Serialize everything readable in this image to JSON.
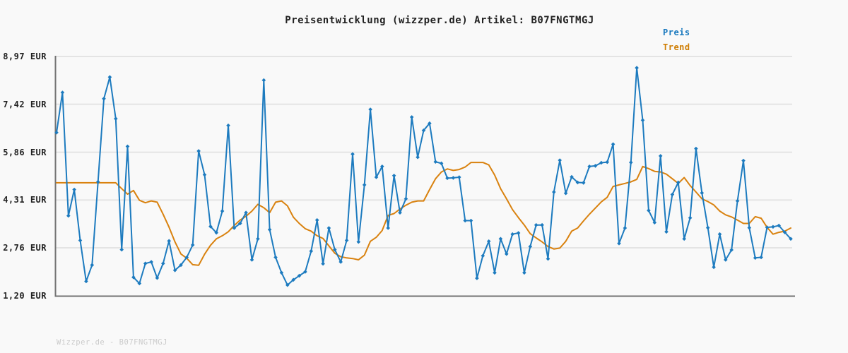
{
  "title": "Preisentwicklung (wizzper.de) Artikel: B07FNGTMGJ",
  "legend": {
    "price_label": "Preis",
    "trend_label": "Trend"
  },
  "watermark": "Wizzper.de - B07FNGTMGJ",
  "currency": "EUR",
  "colors": {
    "background": "#f9f9f9",
    "price_line": "#1d7bbf",
    "trend_line": "#d9820f",
    "legend_price_text": "#1778be",
    "legend_trend_text": "#cf7e04",
    "gridline": "#e4e4e4",
    "axis": "#737373",
    "tick_label": "#222222",
    "watermark_text": "#cbcbcb"
  },
  "chart_data": {
    "type": "line",
    "title": "Preisentwicklung (wizzper.de) Artikel: B07FNGTMGJ",
    "xlabel": "",
    "ylabel": "EUR",
    "ylim": [
      1.2,
      8.97
    ],
    "grid": "horizontal",
    "legend_position": "top-right",
    "y_ticks": [
      {
        "value": 8.97,
        "label": "8,97 EUR"
      },
      {
        "value": 7.42,
        "label": "7,42 EUR"
      },
      {
        "value": 5.86,
        "label": "5,86 EUR"
      },
      {
        "value": 4.31,
        "label": "4,31 EUR"
      },
      {
        "value": 2.76,
        "label": "2,76 EUR"
      },
      {
        "value": 1.2,
        "label": "1,20 EUR"
      }
    ],
    "series": [
      {
        "name": "Preis",
        "color": "#1d7bbf",
        "marker": "diamond",
        "values": [
          6.5,
          7.8,
          3.8,
          4.65,
          3.0,
          1.67,
          2.2,
          4.9,
          7.6,
          8.3,
          6.95,
          2.7,
          6.05,
          1.8,
          1.6,
          2.25,
          2.3,
          1.78,
          2.25,
          2.98,
          2.03,
          2.2,
          2.45,
          2.85,
          5.9,
          5.13,
          3.45,
          3.25,
          3.95,
          6.73,
          3.4,
          3.55,
          3.9,
          2.37,
          3.05,
          8.2,
          3.35,
          2.45,
          1.95,
          1.55,
          1.72,
          1.85,
          1.98,
          2.65,
          3.66,
          2.24,
          3.4,
          2.7,
          2.3,
          3.0,
          5.8,
          2.95,
          4.8,
          7.25,
          5.05,
          5.4,
          3.4,
          5.1,
          3.9,
          4.35,
          7.0,
          5.7,
          6.57,
          6.8,
          5.55,
          5.5,
          5.02,
          5.03,
          5.05,
          3.64,
          3.64,
          1.77,
          2.5,
          2.97,
          1.95,
          3.05,
          2.56,
          3.2,
          3.24,
          1.95,
          2.8,
          3.5,
          3.5,
          2.4,
          4.57,
          5.6,
          4.53,
          5.06,
          4.88,
          4.87,
          5.4,
          5.42,
          5.52,
          5.54,
          6.12,
          2.9,
          3.4,
          5.53,
          8.6,
          6.9,
          3.97,
          3.58,
          5.74,
          3.28,
          4.49,
          4.88,
          3.05,
          3.73,
          5.98,
          4.54,
          3.41,
          2.13,
          3.2,
          2.37,
          2.69,
          4.28,
          5.59,
          3.41,
          2.43,
          2.45,
          3.42,
          3.44,
          3.48,
          3.26,
          3.05
        ]
      },
      {
        "name": "Trend",
        "color": "#d9820f",
        "marker": "none",
        "values": [
          4.87,
          4.87,
          4.87,
          4.87,
          4.87,
          4.87,
          4.87,
          4.87,
          4.87,
          4.87,
          4.87,
          4.68,
          4.5,
          4.62,
          4.3,
          4.22,
          4.28,
          4.24,
          3.85,
          3.43,
          2.95,
          2.56,
          2.42,
          2.21,
          2.19,
          2.55,
          2.84,
          3.05,
          3.15,
          3.28,
          3.48,
          3.66,
          3.78,
          3.95,
          4.17,
          4.06,
          3.9,
          4.24,
          4.28,
          4.12,
          3.75,
          3.55,
          3.38,
          3.3,
          3.15,
          3.06,
          2.82,
          2.58,
          2.47,
          2.43,
          2.41,
          2.37,
          2.52,
          2.97,
          3.1,
          3.32,
          3.81,
          3.87,
          4.02,
          4.14,
          4.24,
          4.28,
          4.28,
          4.65,
          5.0,
          5.22,
          5.32,
          5.27,
          5.3,
          5.38,
          5.53,
          5.53,
          5.53,
          5.45,
          5.12,
          4.68,
          4.35,
          4.0,
          3.74,
          3.5,
          3.22,
          3.08,
          2.95,
          2.8,
          2.72,
          2.75,
          2.97,
          3.3,
          3.4,
          3.63,
          3.85,
          4.05,
          4.25,
          4.4,
          4.75,
          4.8,
          4.85,
          4.9,
          4.98,
          5.4,
          5.33,
          5.24,
          5.22,
          5.15,
          5.0,
          4.85,
          5.04,
          4.78,
          4.57,
          4.35,
          4.26,
          4.15,
          3.95,
          3.83,
          3.76,
          3.66,
          3.55,
          3.55,
          3.77,
          3.72,
          3.42,
          3.2,
          3.26,
          3.3,
          3.4
        ]
      }
    ]
  }
}
